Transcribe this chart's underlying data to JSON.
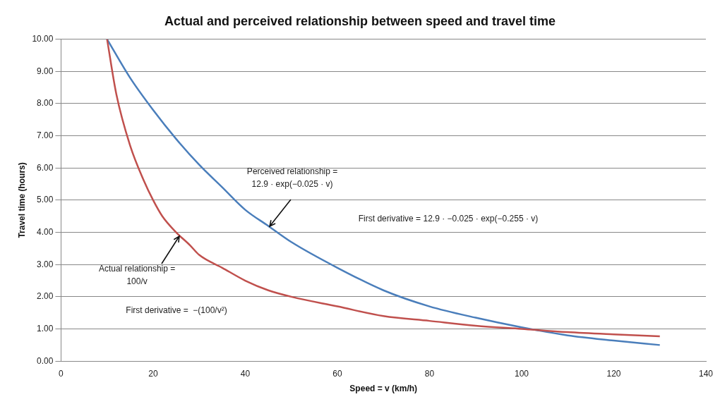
{
  "chart_data": {
    "type": "line",
    "title": "Actual and perceived relationship between speed and travel time",
    "xlabel": "Speed = v (km/h)",
    "ylabel": "Travel time (hours)",
    "series": [
      {
        "color": "#c0504d",
        "x": [
          10,
          12,
          15,
          18,
          20,
          22,
          25,
          28,
          30,
          35,
          40,
          45,
          50,
          60,
          70,
          80,
          90,
          100,
          110,
          120,
          130
        ],
        "values": [
          10.0,
          8.3,
          6.7,
          5.6,
          5.0,
          4.5,
          4.0,
          3.6,
          3.3,
          2.9,
          2.5,
          2.2,
          2.0,
          1.7,
          1.4,
          1.25,
          1.1,
          1.0,
          0.9,
          0.83,
          0.77
        ]
      },
      {
        "color": "#4a7ebb",
        "x": [
          10,
          15,
          20,
          25,
          30,
          35,
          40,
          45,
          50,
          60,
          70,
          80,
          90,
          100,
          110,
          120,
          130
        ],
        "values": [
          10.0,
          8.8,
          7.8,
          6.9,
          6.1,
          5.4,
          4.7,
          4.2,
          3.7,
          2.9,
          2.2,
          1.7,
          1.35,
          1.05,
          0.8,
          0.64,
          0.5
        ]
      }
    ],
    "xlim": [
      0,
      140
    ],
    "xticks": [
      0,
      20,
      40,
      60,
      80,
      100,
      120,
      140
    ],
    "ylim": [
      0,
      10
    ],
    "yticks": [
      {
        "value": 0,
        "label": "0.00"
      },
      {
        "value": 1,
        "label": "1.00"
      },
      {
        "value": 2,
        "label": "2.00"
      },
      {
        "value": 3,
        "label": "3.00"
      },
      {
        "value": 4,
        "label": "4.00"
      },
      {
        "value": 5,
        "label": "5.00"
      },
      {
        "value": 6,
        "label": "6.00"
      },
      {
        "value": 7,
        "label": "7.00"
      },
      {
        "value": 8,
        "label": "8.00"
      },
      {
        "value": 9,
        "label": "9.00"
      },
      {
        "value": 10,
        "label": "10.00"
      }
    ],
    "grid": "y",
    "legend": false,
    "marker": "none",
    "line_style": "solid",
    "annotations": [
      {
        "text": "Perceived relationship =\n12.9 · exp(−0.025 · v)",
        "x": 45,
        "y": 4.1
      },
      "First derivative = 12.9 · −0.025 · exp(−0.255 · v)",
      {
        "text": "Actual relationship =\n100/v",
        "x": 26,
        "y": 3.8
      },
      "First derivative =  −(100/v²)"
    ]
  }
}
